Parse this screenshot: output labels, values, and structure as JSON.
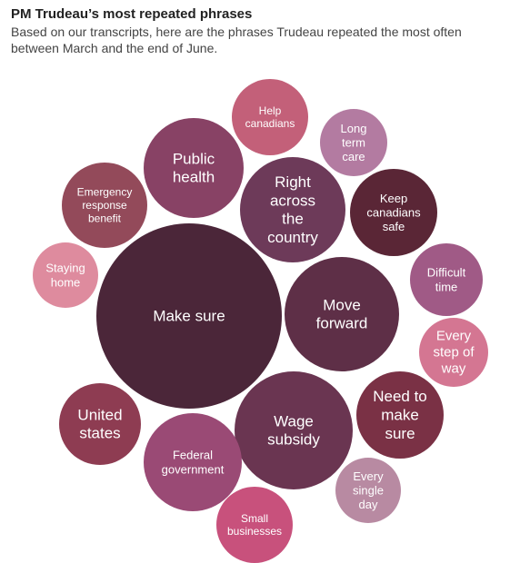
{
  "header": {
    "title": "PM Trudeau’s most repeated phrases",
    "subtitle_line1": "Based on our transcripts, here are the phrases Trudeau repeated the most often",
    "subtitle_line2": "between March and the end of June."
  },
  "chart_data": {
    "type": "bubble",
    "title": "PM Trudeau’s most repeated phrases",
    "subtitle": "Based on our transcripts, here are the phrases Trudeau repeated the most often between March and the end of June.",
    "values_shown_as": "circle area",
    "bubbles": [
      {
        "id": "make-sure",
        "lines": [
          "Make sure"
        ],
        "color": "#4b2639"
      },
      {
        "id": "move-forward",
        "lines": [
          "Move",
          "forward"
        ],
        "color": "#5e2f47"
      },
      {
        "id": "wage-subsidy",
        "lines": [
          "Wage",
          "subsidy"
        ],
        "color": "#6a3551"
      },
      {
        "id": "right-across-the-country",
        "lines": [
          "Right",
          "across",
          "the",
          "country"
        ],
        "color": "#6d3a59"
      },
      {
        "id": "federal-government",
        "lines": [
          "Federal",
          "government"
        ],
        "color": "#9a4a75"
      },
      {
        "id": "public-health",
        "lines": [
          "Public",
          "health"
        ],
        "color": "#884265"
      },
      {
        "id": "united-states",
        "lines": [
          "United",
          "states"
        ],
        "color": "#8e3c52"
      },
      {
        "id": "need-to-make-sure",
        "lines": [
          "Need to",
          "make",
          "sure"
        ],
        "color": "#7a3145"
      },
      {
        "id": "keep-canadians-safe",
        "lines": [
          "Keep",
          "canadians",
          "safe"
        ],
        "color": "#5a2636"
      },
      {
        "id": "emergency-response-benefit",
        "lines": [
          "Emergency",
          "response",
          "benefit"
        ],
        "color": "#934a5a"
      },
      {
        "id": "small-businesses",
        "lines": [
          "Small",
          "businesses"
        ],
        "color": "#c8517c"
      },
      {
        "id": "help-canadians",
        "lines": [
          "Help",
          "canadians"
        ],
        "color": "#c36079"
      },
      {
        "id": "every-step-of-way",
        "lines": [
          "Every",
          "step of",
          "way"
        ],
        "color": "#d47692"
      },
      {
        "id": "difficult-time",
        "lines": [
          "Difficult",
          "time"
        ],
        "color": "#a05a86"
      },
      {
        "id": "every-single-day",
        "lines": [
          "Every",
          "single",
          "day"
        ],
        "color": "#b88aa2"
      },
      {
        "id": "long-term-care",
        "lines": [
          "Long",
          "term",
          "care"
        ],
        "color": "#b37ba1"
      },
      {
        "id": "staying-home",
        "lines": [
          "Staying",
          "home"
        ],
        "color": "#de8b9e"
      }
    ]
  }
}
